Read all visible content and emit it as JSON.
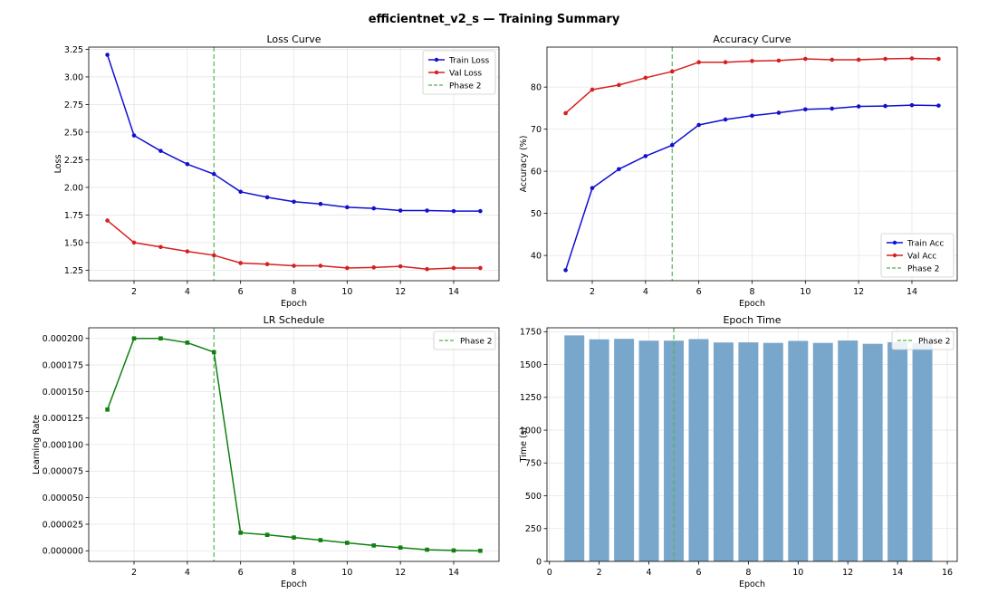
{
  "figure": {
    "title": "efficientnet_v2_s — Training Summary"
  },
  "chart_data": [
    {
      "id": "loss",
      "type": "line",
      "title": "Loss Curve",
      "xlabel": "Epoch",
      "ylabel": "Loss",
      "xlim": [
        0.3,
        15.7
      ],
      "ylim": [
        1.155,
        3.27
      ],
      "xticks": [
        2,
        4,
        6,
        8,
        10,
        12,
        14
      ],
      "yticks": [
        1.25,
        1.5,
        1.75,
        2.0,
        2.25,
        2.5,
        2.75,
        3.0,
        3.25
      ],
      "ytick_decimals": 2,
      "grid": true,
      "legend": "upper right",
      "x": [
        1,
        2,
        3,
        4,
        5,
        6,
        7,
        8,
        9,
        10,
        11,
        12,
        13,
        14,
        15
      ],
      "series": [
        {
          "name": "Train Loss",
          "color": "#1010d0",
          "marker": "circle",
          "values": [
            3.2,
            2.47,
            2.33,
            2.21,
            2.12,
            1.96,
            1.91,
            1.87,
            1.85,
            1.82,
            1.81,
            1.79,
            1.79,
            1.785,
            1.785
          ]
        },
        {
          "name": "Val Loss",
          "color": "#d62020",
          "marker": "circle",
          "values": [
            1.7,
            1.5,
            1.46,
            1.42,
            1.385,
            1.315,
            1.305,
            1.29,
            1.29,
            1.27,
            1.275,
            1.285,
            1.26,
            1.27,
            1.27
          ]
        }
      ],
      "vline": {
        "x": 5,
        "name": "Phase 2",
        "color": "#55b055"
      }
    },
    {
      "id": "acc",
      "type": "line",
      "title": "Accuracy Curve",
      "xlabel": "Epoch",
      "ylabel": "Accuracy (%)",
      "xlim": [
        0.3,
        15.7
      ],
      "ylim": [
        34.0,
        89.5
      ],
      "xticks": [
        2,
        4,
        6,
        8,
        10,
        12,
        14
      ],
      "yticks": [
        40,
        50,
        60,
        70,
        80
      ],
      "ytick_decimals": 0,
      "grid": true,
      "legend": "lower right",
      "x": [
        1,
        2,
        3,
        4,
        5,
        6,
        7,
        8,
        9,
        10,
        11,
        12,
        13,
        14,
        15
      ],
      "series": [
        {
          "name": "Train Acc",
          "color": "#1010d0",
          "marker": "circle",
          "values": [
            36.5,
            56.0,
            60.5,
            63.6,
            66.2,
            71.0,
            72.3,
            73.2,
            73.9,
            74.7,
            74.9,
            75.4,
            75.5,
            75.7,
            75.6
          ]
        },
        {
          "name": "Val Acc",
          "color": "#d62020",
          "marker": "circle",
          "values": [
            73.8,
            79.4,
            80.5,
            82.2,
            83.7,
            85.9,
            85.9,
            86.2,
            86.3,
            86.7,
            86.5,
            86.5,
            86.7,
            86.8,
            86.7
          ]
        }
      ],
      "vline": {
        "x": 5,
        "name": "Phase 2",
        "color": "#55b055"
      }
    },
    {
      "id": "lr",
      "type": "line",
      "title": "LR Schedule",
      "xlabel": "Epoch",
      "ylabel": "Learning Rate",
      "xlim": [
        0.3,
        15.7
      ],
      "ylim": [
        -1e-05,
        0.00021
      ],
      "xticks": [
        2,
        4,
        6,
        8,
        10,
        12,
        14
      ],
      "yticks": [
        0,
        2.5e-05,
        5e-05,
        7.5e-05,
        0.0001,
        0.000125,
        0.00015,
        0.000175,
        0.0002
      ],
      "ytick_decimals": 6,
      "grid": true,
      "legend": "upper right",
      "x": [
        1,
        2,
        3,
        4,
        5,
        6,
        7,
        8,
        9,
        10,
        11,
        12,
        13,
        14,
        15
      ],
      "series": [
        {
          "name": "",
          "color": "#108010",
          "marker": "square",
          "values": [
            0.000133,
            0.0002,
            0.0002,
            0.000196,
            0.000187,
            1.7e-05,
            1.5e-05,
            1.25e-05,
            1e-05,
            7.5e-06,
            5e-06,
            3e-06,
            1e-06,
            3e-07,
            0.0
          ]
        }
      ],
      "vline": {
        "x": 5,
        "name": "Phase 2",
        "color": "#55b055"
      }
    },
    {
      "id": "time",
      "type": "bar",
      "title": "Epoch Time",
      "xlabel": "Epoch",
      "ylabel": "Time (s)",
      "xlim": [
        -0.1,
        16.4
      ],
      "ylim": [
        0,
        1780
      ],
      "xticks": [
        0,
        2,
        4,
        6,
        8,
        10,
        12,
        14,
        16
      ],
      "yticks": [
        0,
        250,
        500,
        750,
        1000,
        1250,
        1500,
        1750
      ],
      "ytick_decimals": 0,
      "grid": true,
      "legend": "upper right",
      "bar_color": "#79a6cb",
      "x": [
        1,
        2,
        3,
        4,
        5,
        6,
        7,
        8,
        9,
        10,
        11,
        12,
        13,
        14,
        15
      ],
      "values": [
        1722,
        1692,
        1696,
        1682,
        1682,
        1694,
        1668,
        1669,
        1665,
        1680,
        1665,
        1683,
        1658,
        1670,
        1665
      ],
      "vline": {
        "x": 5,
        "name": "Phase 2",
        "color": "#55b055"
      }
    }
  ]
}
